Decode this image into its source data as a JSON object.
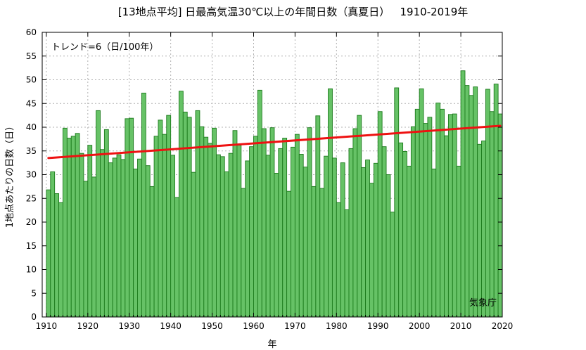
{
  "title": "[13地点平均] 日最高気温30℃以上の年間日数（真夏日）   1910-2019年",
  "colors": {
    "bar_fill": "#66c266",
    "bar_stroke": "#1c7a1c",
    "trend": "#ee1111",
    "grid": "#b0b0b0"
  },
  "chart_data": {
    "type": "bar",
    "xlabel": "年",
    "ylabel": "1地点あたりの日数（日）",
    "ylim": [
      0,
      60
    ],
    "xlim": [
      1909,
      2020
    ],
    "yticks": [
      0,
      5,
      10,
      15,
      20,
      25,
      30,
      35,
      40,
      45,
      50,
      55,
      60
    ],
    "xticks": [
      1910,
      1920,
      1930,
      1940,
      1950,
      1960,
      1970,
      1980,
      1990,
      2000,
      2010,
      2020
    ],
    "grid": true,
    "years": [
      1910,
      1911,
      1912,
      1913,
      1914,
      1915,
      1916,
      1917,
      1918,
      1919,
      1920,
      1921,
      1922,
      1923,
      1924,
      1925,
      1926,
      1927,
      1928,
      1929,
      1930,
      1931,
      1932,
      1933,
      1934,
      1935,
      1936,
      1937,
      1938,
      1939,
      1940,
      1941,
      1942,
      1943,
      1944,
      1945,
      1946,
      1947,
      1948,
      1949,
      1950,
      1951,
      1952,
      1953,
      1954,
      1955,
      1956,
      1957,
      1958,
      1959,
      1960,
      1961,
      1962,
      1963,
      1964,
      1965,
      1966,
      1967,
      1968,
      1969,
      1970,
      1971,
      1972,
      1973,
      1974,
      1975,
      1976,
      1977,
      1978,
      1979,
      1980,
      1981,
      1982,
      1983,
      1984,
      1985,
      1986,
      1987,
      1988,
      1989,
      1990,
      1991,
      1992,
      1993,
      1994,
      1995,
      1996,
      1997,
      1998,
      1999,
      2000,
      2001,
      2002,
      2003,
      2004,
      2005,
      2006,
      2007,
      2008,
      2009,
      2010,
      2011,
      2012,
      2013,
      2014,
      2015,
      2016,
      2017,
      2018,
      2019
    ],
    "values": [
      26.8,
      30.6,
      26.0,
      24.1,
      39.8,
      37.7,
      38.1,
      38.7,
      34.5,
      28.6,
      36.2,
      29.5,
      43.5,
      35.3,
      39.5,
      32.5,
      33.5,
      34.2,
      33.2,
      41.8,
      41.9,
      31.2,
      33.3,
      47.2,
      31.9,
      27.5,
      38.1,
      41.5,
      38.5,
      42.5,
      34.1,
      25.2,
      47.6,
      43.2,
      42.1,
      30.5,
      43.5,
      40.1,
      37.9,
      36.6,
      39.8,
      34.2,
      33.8,
      30.6,
      34.5,
      39.3,
      36.2,
      27.1,
      32.9,
      35.9,
      38.1,
      47.8,
      39.7,
      34.1,
      39.9,
      30.3,
      35.5,
      37.7,
      26.5,
      35.8,
      38.5,
      34.3,
      31.6,
      39.9,
      27.5,
      42.4,
      27.1,
      33.9,
      48.1,
      33.5,
      24.1,
      32.5,
      22.6,
      35.5,
      39.7,
      42.5,
      31.5,
      33.1,
      28.2,
      32.4,
      43.3,
      35.9,
      30.0,
      22.1,
      48.3,
      36.7,
      34.9,
      31.8,
      40.1,
      43.8,
      48.1,
      40.8,
      42.1,
      31.2,
      45.1,
      43.8,
      38.2,
      42.7,
      42.8,
      31.8,
      51.9,
      48.8,
      46.7,
      48.5,
      36.4,
      37.1,
      48.0,
      43.3,
      49.1,
      42.8
    ],
    "trend": {
      "label": "トレンド=6（日/100年）",
      "start": [
        1910,
        33.5
      ],
      "end": [
        2019,
        40.3
      ]
    },
    "source": "気象庁"
  }
}
